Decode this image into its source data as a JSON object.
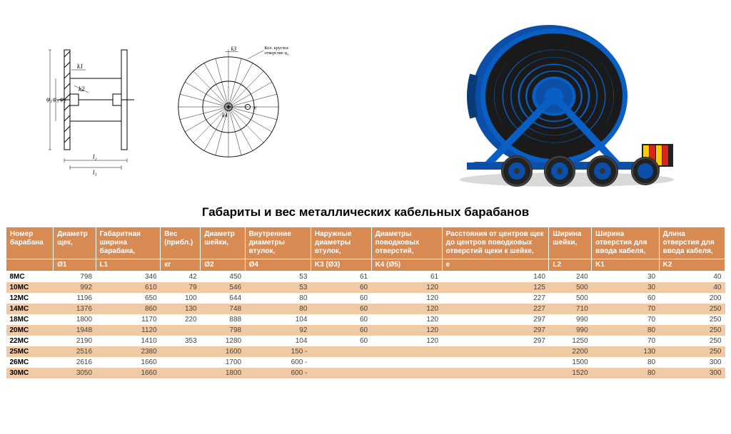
{
  "title": "Габариты и вес металлических кабельных барабанов",
  "diagram": {
    "side_labels": {
      "phi1": "φ₁",
      "phi2": "φ₂",
      "phi3": "φ₃",
      "k1": "k1",
      "k2": "k2",
      "l1": "l₁",
      "l2": "l₂"
    },
    "front_labels": {
      "k3": "k3",
      "k4": "k4",
      "e": "e",
      "note": "Кол. круглое\nотверстие φ₄"
    }
  },
  "photo": {
    "drum_color": "#0b4fa8",
    "frame_color": "#0a5fc4",
    "hose_color": "#1a1a1a",
    "tire_color": "#222222",
    "rim_color": "#0b4fa8",
    "stripe_a": "#ffcc00",
    "stripe_b": "#d9261c"
  },
  "table": {
    "header_bg": "#d88a53",
    "even_row_bg": "#f0c9a5",
    "odd_row_bg": "#ffffff",
    "columns": [
      {
        "h1": "Номер барабана",
        "h2": ""
      },
      {
        "h1": "Диаметр щек,",
        "h2": "Ø1"
      },
      {
        "h1": "Габаритная ширина барабана,",
        "h2": "L1"
      },
      {
        "h1": "Вес (прибл.)",
        "h2": "кг"
      },
      {
        "h1": "Диаметр шейки,",
        "h2": "Ø2"
      },
      {
        "h1": "Внутренние диаметры втулок,",
        "h2": "Ø4"
      },
      {
        "h1": "Наружные диаметры втулок,",
        "h2": "K3 (Ø3)"
      },
      {
        "h1": "Диаметры поводковых отверстий,",
        "h2": "K4 (Ø5)"
      },
      {
        "h1": "Расстояния от центров щек до центров поводковых отверстий щеки к шейке,",
        "h2": "e"
      },
      {
        "h1": "Ширина шейки,",
        "h2": "L2"
      },
      {
        "h1": "Ширина отверстия для ввода кабеля,",
        "h2": "K1"
      },
      {
        "h1": "Длина отверстия для ввода кабеля,",
        "h2": "K2"
      }
    ],
    "rows": [
      [
        "8MC",
        "798",
        "346",
        "42",
        "450",
        "53",
        "61",
        "61",
        "140",
        "240",
        "30",
        "40"
      ],
      [
        "10MC",
        "992",
        "610",
        "79",
        "546",
        "53",
        "60",
        "120",
        "125",
        "500",
        "30",
        "40"
      ],
      [
        "12MC",
        "1196",
        "650",
        "100",
        "644",
        "80",
        "60",
        "120",
        "227",
        "500",
        "60",
        "200"
      ],
      [
        "14MC",
        "1376",
        "860",
        "130",
        "748",
        "80",
        "60",
        "120",
        "227",
        "710",
        "70",
        "250"
      ],
      [
        "18MC",
        "1800",
        "1170",
        "220",
        "888",
        "104",
        "60",
        "120",
        "297",
        "990",
        "70",
        "250"
      ],
      [
        "20MC",
        "1948",
        "1120",
        "",
        "798",
        "92",
        "60",
        "120",
        "297",
        "990",
        "80",
        "250"
      ],
      [
        "22MC",
        "2190",
        "1410",
        "353",
        "1280",
        "104",
        "60",
        "120",
        "297",
        "1250",
        "70",
        "250"
      ],
      [
        "25MC",
        "2516",
        "2380",
        "",
        "1600",
        "150 -",
        "",
        "",
        "",
        "2200",
        "130",
        "250"
      ],
      [
        "26MC",
        "2616",
        "1660",
        "",
        "1700",
        "600 -",
        "",
        "",
        "",
        "1500",
        "80",
        "300"
      ],
      [
        "30MC",
        "3050",
        "1660",
        "",
        "1800",
        "600 -",
        "",
        "",
        "",
        "1520",
        "80",
        "300"
      ]
    ]
  }
}
